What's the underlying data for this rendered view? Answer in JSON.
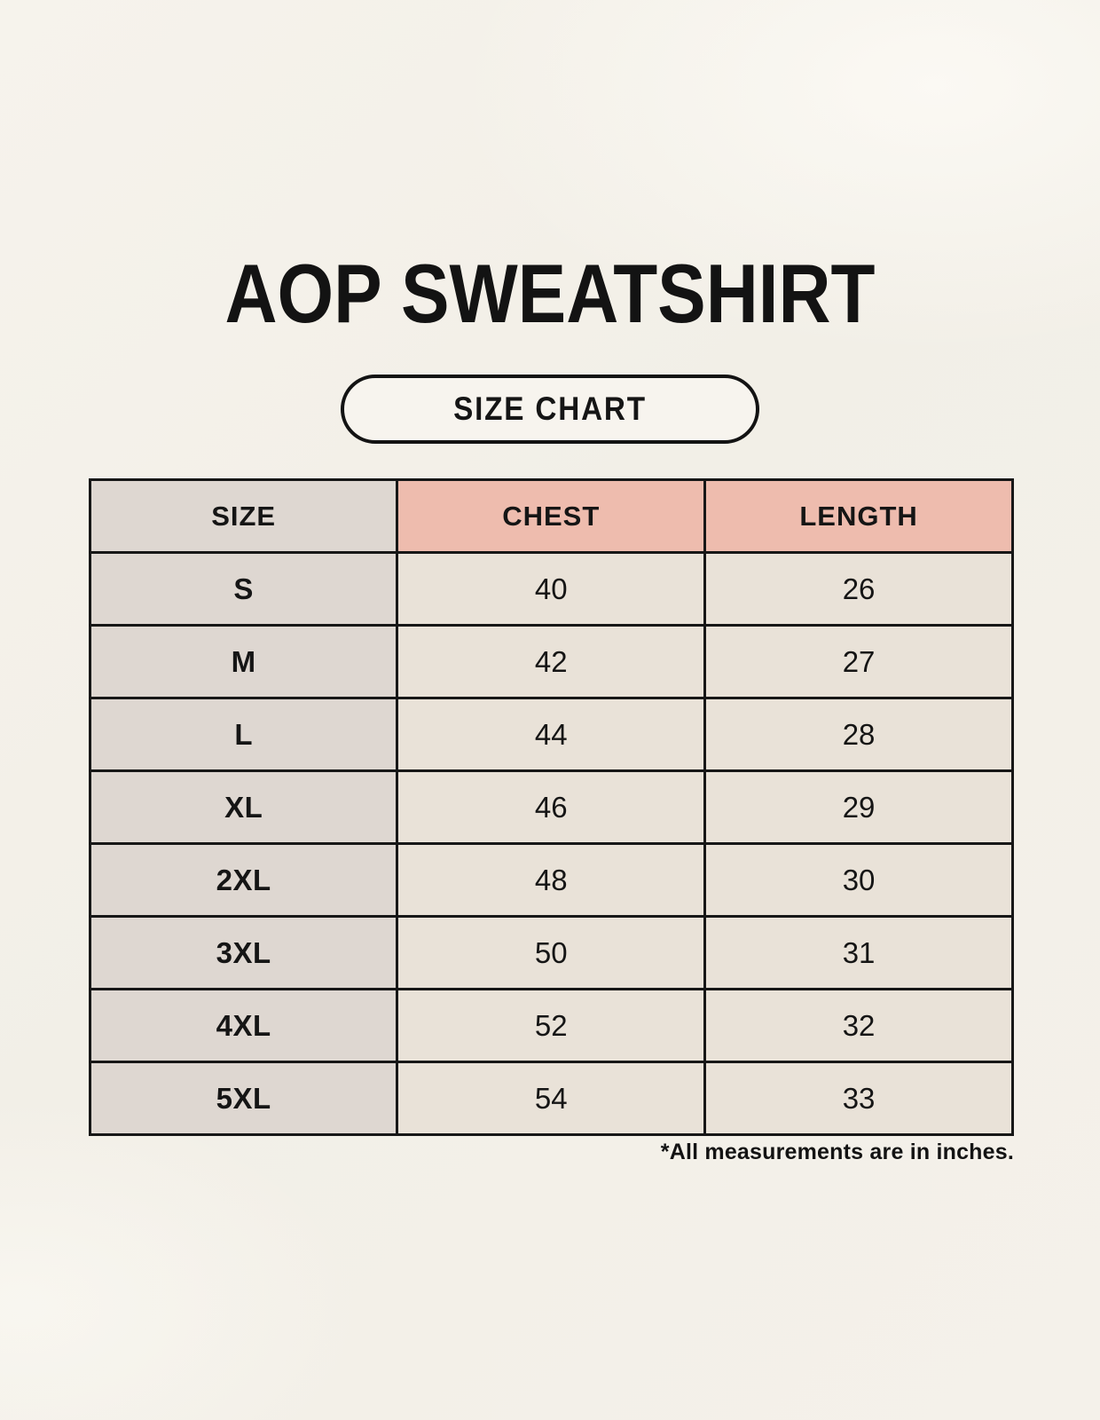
{
  "title": "AOP SWEATSHIRT",
  "badge_label": "SIZE CHART",
  "footnote": "*All measurements are in inches.",
  "table": {
    "headers": [
      "SIZE",
      "CHEST",
      "LENGTH"
    ],
    "rows": [
      {
        "size": "S",
        "chest": "40",
        "length": "26"
      },
      {
        "size": "M",
        "chest": "42",
        "length": "27"
      },
      {
        "size": "L",
        "chest": "44",
        "length": "28"
      },
      {
        "size": "XL",
        "chest": "46",
        "length": "29"
      },
      {
        "size": "2XL",
        "chest": "48",
        "length": "30"
      },
      {
        "size": "3XL",
        "chest": "50",
        "length": "31"
      },
      {
        "size": "4XL",
        "chest": "52",
        "length": "32"
      },
      {
        "size": "5XL",
        "chest": "54",
        "length": "33"
      }
    ]
  },
  "chart_data": {
    "type": "table",
    "title": "AOP SWEATSHIRT",
    "subtitle": "SIZE CHART",
    "columns": [
      "SIZE",
      "CHEST",
      "LENGTH"
    ],
    "rows": [
      [
        "S",
        40,
        26
      ],
      [
        "M",
        42,
        27
      ],
      [
        "L",
        44,
        28
      ],
      [
        "XL",
        46,
        29
      ],
      [
        "2XL",
        48,
        30
      ],
      [
        "3XL",
        50,
        31
      ],
      [
        "4XL",
        52,
        32
      ],
      [
        "5XL",
        54,
        33
      ]
    ],
    "units": "inches",
    "annotations": [
      "*All measurements are in inches."
    ]
  },
  "colors": {
    "background": "#f4f1ea",
    "size_column_bg": "#ded7d1",
    "header_accent_bg": "#eebcae",
    "data_cell_bg": "#e9e2d8",
    "border": "#171717",
    "text": "#131313"
  }
}
